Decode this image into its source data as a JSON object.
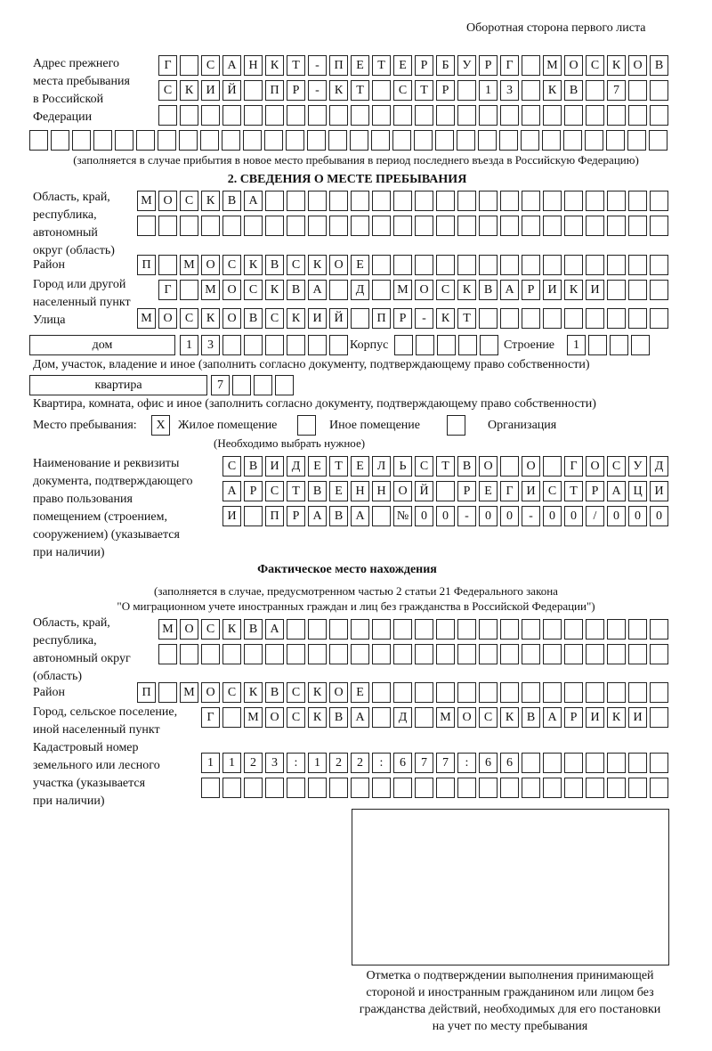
{
  "header": "Оборотная сторона первого листа",
  "prev_address": {
    "label": [
      "Адрес прежнего",
      "места пребывания",
      "в Российской",
      "Федерации"
    ],
    "rows": [
      "Г САНКТ-ПЕТЕРБУРГ МОСКОВ",
      "СКИЙ ПР-КТ СТР 13 КВ 7",
      "",
      ""
    ],
    "note": "(заполняется в случае прибытия в новое место пребывания в период последнего въезда в Российскую Федерацию)"
  },
  "section2": {
    "title": "2. СВЕДЕНИЯ О МЕСТЕ ПРЕБЫВАНИЯ",
    "region_label": [
      "Область, край,",
      "республика,",
      "автономный",
      "округ (область)"
    ],
    "region_rows": [
      "МОСКВА",
      ""
    ],
    "district_label": "Район",
    "district": "П МОСКВСКОЕ",
    "city_label": [
      "Город или другой",
      "населенный пункт"
    ],
    "city": "Г МОСКВА Д МОСКВАРИКИ",
    "street_label": "Улица",
    "street": "МОСКОВСКИЙ ПР-КТ",
    "house_type": "дом",
    "house": "13",
    "korpus_label": "Корпус",
    "korpus": "",
    "building_label": "Строение",
    "building": "1",
    "house_caption": "Дом, участок, владение и иное (заполнить согласно документу, подтверждающему право собственности)",
    "flat_type": "квартира",
    "flat": "7",
    "flat_caption": "Квартира, комната, офис и иное (заполнить согласно документу, подтверждающему право собственности)",
    "stay_label": "Место пребывания:",
    "stay_options": [
      {
        "mark": "X",
        "label": "Жилое помещение"
      },
      {
        "mark": "",
        "label": "Иное помещение"
      },
      {
        "mark": "",
        "label": "Организация"
      }
    ],
    "stay_note": "(Необходимо выбрать нужное)",
    "doc_label": [
      "Наименование и реквизиты",
      "документа, подтверждающего",
      "право пользования",
      "помещением (строением,",
      "сооружением) (указывается",
      "при наличии)"
    ],
    "doc_rows": [
      "СВИДЕТЕЛЬСТВО О ГОСУД",
      "АРСТВЕННОЙ РЕГИСТРАЦИ",
      "И ПРАВА №00-00-00/000"
    ]
  },
  "actual": {
    "title": "Фактическое место нахождения",
    "note": [
      "(заполняется в случае, предусмотренном частью 2 статьи 21 Федерального закона",
      "\"О миграционном учете иностранных граждан и лиц без гражданства в Российской Федерации\")"
    ],
    "region_label": [
      "Область, край,",
      "республика,",
      "автономный округ",
      "(область)"
    ],
    "region_rows": [
      "МОСКВА",
      ""
    ],
    "district_label": "Район",
    "district": "П МОСКВСКОЕ",
    "city_label": [
      "Город, сельское поселение,",
      "иной населенный пункт"
    ],
    "city": "Г МОСКВА Д МОСКВАРИКИ",
    "cadastre_label": [
      "Кадастровый номер",
      "земельного или лесного",
      "участка (указывается",
      "при наличии)"
    ],
    "cadastre_rows": [
      "1123:122:677:66",
      ""
    ]
  },
  "stamp_caption": [
    "Отметка о подтверждении выполнения принимающей",
    "стороной и иностранным гражданином или лицом без",
    "гражданства действий, необходимых для его постановки",
    "на учет по месту пребывания"
  ]
}
